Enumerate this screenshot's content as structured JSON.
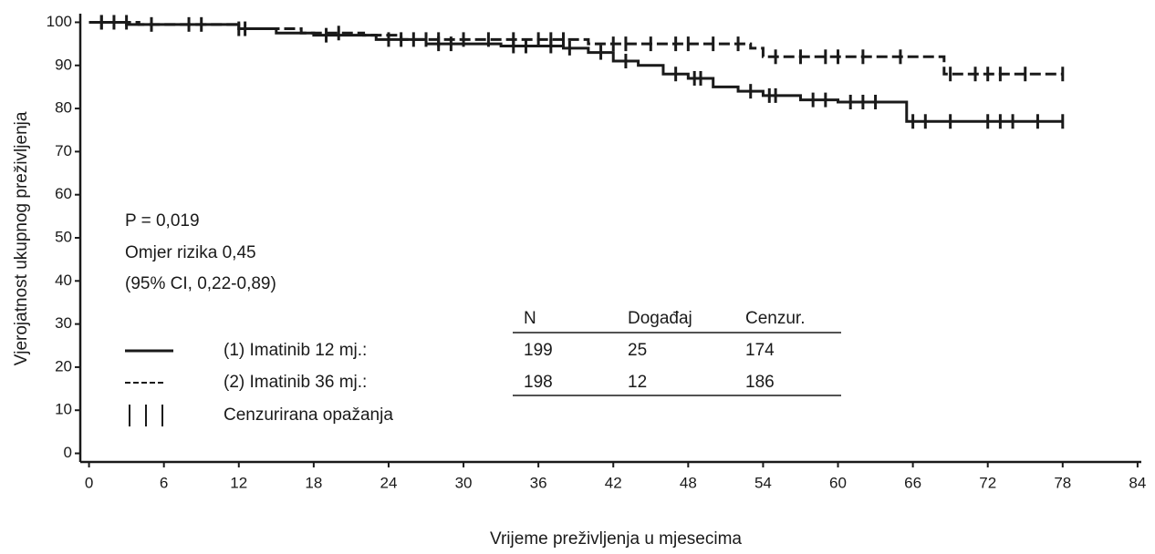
{
  "chart_data": {
    "type": "kaplan-meier",
    "xlabel": "Vrijeme preživljenja u mjesecima",
    "ylabel": "Vjerojatnost ukupnog preživljenja",
    "xlim": [
      -0.7,
      84.3
    ],
    "ylim": [
      -2,
      102
    ],
    "xticks": [
      0,
      6,
      12,
      18,
      24,
      30,
      36,
      42,
      48,
      54,
      60,
      66,
      72,
      78,
      84
    ],
    "yticks": [
      0,
      10,
      20,
      30,
      40,
      50,
      60,
      70,
      80,
      90,
      100
    ],
    "annotations": [
      "P = 0,019",
      "Omjer rizika 0,45",
      "(95% CI, 0,22-0,89)"
    ],
    "legend": {
      "headers": [
        "N",
        "Događaj",
        "Cenzur."
      ],
      "rows": [
        {
          "label": "(1) Imatinib 12 mj.:",
          "cells": [
            "199",
            "25",
            "174"
          ]
        },
        {
          "label": "(2) Imatinib 36 mj.:",
          "cells": [
            "198",
            "12",
            "186"
          ]
        }
      ],
      "censor_label": "Cenzurirana opažanja"
    },
    "series": [
      {
        "name": "(1) Imatinib 12 mj.",
        "color": "#1a1a1a",
        "line_style": "solid",
        "x": [
          0,
          3,
          12,
          15,
          18,
          23,
          27,
          33,
          38,
          40,
          42,
          44,
          46,
          48,
          50,
          52,
          54,
          57,
          60,
          65.5,
          78
        ],
        "values": [
          100,
          99.5,
          98.5,
          97.5,
          97,
          96,
          95,
          94.5,
          94,
          93,
          91,
          90,
          88,
          87,
          85,
          84,
          83,
          82,
          81.5,
          77,
          77
        ],
        "censored_x": [
          1,
          2,
          5,
          8,
          12.5,
          19,
          24,
          25,
          28,
          29,
          34,
          35,
          37,
          38.5,
          41,
          43,
          47,
          48.5,
          49,
          53,
          54.5,
          55,
          58,
          59,
          61,
          62,
          63,
          66,
          67,
          69,
          72,
          73,
          74,
          76,
          78
        ],
        "censored_values": [
          100,
          100,
          99.5,
          99.5,
          98.5,
          97,
          96,
          96,
          95,
          95,
          94.5,
          94.5,
          94.5,
          94,
          93,
          91,
          88,
          87,
          87,
          84,
          83,
          83,
          82,
          82,
          81.5,
          81.5,
          81.5,
          77,
          77,
          77,
          77,
          77,
          77,
          77,
          77
        ]
      },
      {
        "name": "(2) Imatinib 36 mj.",
        "color": "#1a1a1a",
        "line_style": "dashed",
        "x": [
          0,
          4,
          12,
          17,
          22,
          25,
          40,
          53,
          54,
          68.5,
          78
        ],
        "values": [
          100,
          99.5,
          98.5,
          97.5,
          97,
          96,
          95,
          94,
          92,
          88,
          88
        ],
        "censored_x": [
          1,
          3,
          9,
          12,
          20,
          26,
          27,
          28,
          30,
          32,
          34,
          36,
          37,
          38,
          42,
          43,
          45,
          47,
          48,
          50,
          52,
          55,
          57,
          59,
          60,
          62,
          65,
          69,
          71,
          72,
          73,
          75,
          78
        ],
        "censored_values": [
          100,
          100,
          99.5,
          98.5,
          97.5,
          96,
          96,
          96,
          96,
          96,
          96,
          96,
          96,
          96,
          95,
          95,
          95,
          95,
          95,
          95,
          95,
          92,
          92,
          92,
          92,
          92,
          92,
          88,
          88,
          88,
          88,
          88,
          88
        ]
      }
    ]
  }
}
